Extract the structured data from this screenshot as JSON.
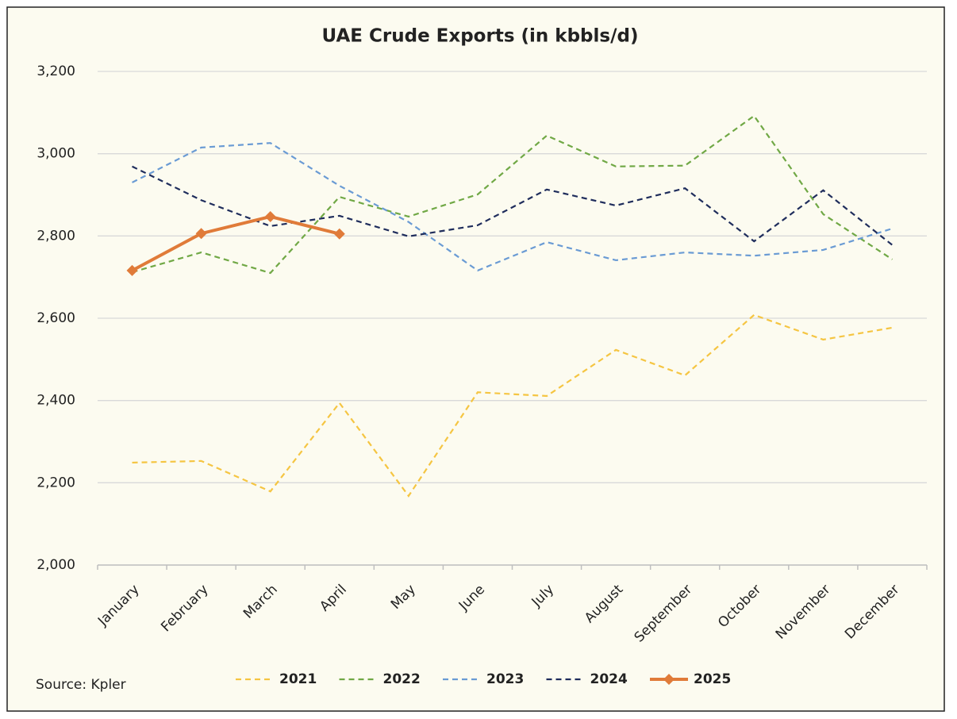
{
  "chart_data": {
    "type": "line",
    "title": "UAE Crude Exports (in kbbls/d)",
    "source": "Source: Kpler",
    "categories": [
      "January",
      "February",
      "March",
      "April",
      "May",
      "June",
      "July",
      "August",
      "September",
      "October",
      "November",
      "December"
    ],
    "ylim": [
      2000,
      3200
    ],
    "yticks": [
      {
        "value": 2000,
        "label": "2,000"
      },
      {
        "value": 2200,
        "label": "2,200"
      },
      {
        "value": 2400,
        "label": "2,400"
      },
      {
        "value": 2600,
        "label": "2,600"
      },
      {
        "value": 2800,
        "label": "2,800"
      },
      {
        "value": 3000,
        "label": "3,000"
      },
      {
        "value": 3200,
        "label": "3,200"
      }
    ],
    "grid": true,
    "legend": "bottom",
    "series": [
      {
        "name": "2021",
        "color": "#f5c542",
        "style": "dashed",
        "values": [
          2249,
          2253,
          2179,
          2394,
          2168,
          2420,
          2411,
          2523,
          2461,
          2608,
          2548,
          2577
        ]
      },
      {
        "name": "2022",
        "color": "#70a845",
        "style": "dashed",
        "values": [
          2712,
          2760,
          2710,
          2895,
          2847,
          2901,
          3044,
          2969,
          2971,
          3092,
          2853,
          2743
        ]
      },
      {
        "name": "2023",
        "color": "#6a9bd4",
        "style": "dashed",
        "values": [
          2930,
          3015,
          3026,
          2922,
          2834,
          2716,
          2785,
          2741,
          2760,
          2752,
          2766,
          2818
        ]
      },
      {
        "name": "2024",
        "color": "#1f2d5c",
        "style": "dashed",
        "values": [
          2969,
          2887,
          2824,
          2849,
          2799,
          2826,
          2913,
          2874,
          2916,
          2787,
          2911,
          2778
        ]
      },
      {
        "name": "2025",
        "color": "#e07b39",
        "style": "solid",
        "marker": "diamond",
        "values": [
          2716,
          2806,
          2847,
          2805,
          null,
          null,
          null,
          null,
          null,
          null,
          null,
          null
        ]
      }
    ]
  }
}
